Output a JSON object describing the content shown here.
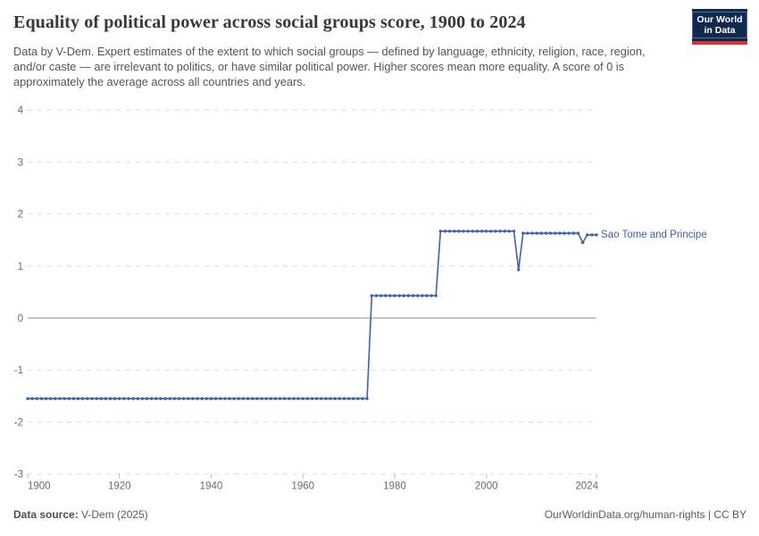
{
  "header": {
    "title": "Equality of political power across social groups score, 1900 to 2024",
    "subtitle": "Data by V-Dem. Expert estimates of the extent to which social groups — defined by language, ethnicity, religion, race, region, and/or caste — are irrelevant to politics, or have similar political power. Higher scores mean more equality. A score of 0 is approximately the average across all countries and years.",
    "logo": {
      "line1": "Our World",
      "line2": "in Data",
      "bg_color": "#12294d",
      "stripe_color": "#d0352f"
    }
  },
  "chart_data": {
    "type": "line",
    "title": "Equality of political power across social groups score, 1900 to 2024",
    "xlim": [
      1900,
      2024
    ],
    "ylim": [
      -3,
      4
    ],
    "x_ticks": [
      1900,
      1920,
      1940,
      1960,
      1980,
      2000,
      2024
    ],
    "y_ticks": [
      4,
      3,
      2,
      1,
      0,
      -1,
      -2,
      -3
    ],
    "grid": "horizontal-dashed",
    "zero_line": true,
    "legend_position": "right-of-line-end-label",
    "series": [
      {
        "name": "Sao Tome and Principe",
        "color": "#3d63a8",
        "x_start": 1900,
        "values": [
          -1.55,
          -1.55,
          -1.55,
          -1.55,
          -1.55,
          -1.55,
          -1.55,
          -1.55,
          -1.55,
          -1.55,
          -1.55,
          -1.55,
          -1.55,
          -1.55,
          -1.55,
          -1.55,
          -1.55,
          -1.55,
          -1.55,
          -1.55,
          -1.55,
          -1.55,
          -1.55,
          -1.55,
          -1.55,
          -1.55,
          -1.55,
          -1.55,
          -1.55,
          -1.55,
          -1.55,
          -1.55,
          -1.55,
          -1.55,
          -1.55,
          -1.55,
          -1.55,
          -1.55,
          -1.55,
          -1.55,
          -1.55,
          -1.55,
          -1.55,
          -1.55,
          -1.55,
          -1.55,
          -1.55,
          -1.55,
          -1.55,
          -1.55,
          -1.55,
          -1.55,
          -1.55,
          -1.55,
          -1.55,
          -1.55,
          -1.55,
          -1.55,
          -1.55,
          -1.55,
          -1.55,
          -1.55,
          -1.55,
          -1.55,
          -1.55,
          -1.55,
          -1.55,
          -1.55,
          -1.55,
          -1.55,
          -1.55,
          -1.55,
          -1.55,
          -1.55,
          -1.55,
          0.43,
          0.43,
          0.43,
          0.43,
          0.43,
          0.43,
          0.43,
          0.43,
          0.43,
          0.43,
          0.43,
          0.43,
          0.43,
          0.43,
          0.43,
          1.67,
          1.67,
          1.67,
          1.67,
          1.67,
          1.67,
          1.67,
          1.67,
          1.67,
          1.67,
          1.67,
          1.67,
          1.67,
          1.67,
          1.67,
          1.67,
          1.67,
          0.93,
          1.63,
          1.63,
          1.63,
          1.63,
          1.63,
          1.63,
          1.63,
          1.63,
          1.63,
          1.63,
          1.63,
          1.63,
          1.63,
          1.45,
          1.6,
          1.6,
          1.6
        ]
      }
    ]
  },
  "footer": {
    "source_label": "Data source:",
    "source_value": "V-Dem (2025)",
    "credit": "OurWorldinData.org/human-rights | CC BY"
  }
}
